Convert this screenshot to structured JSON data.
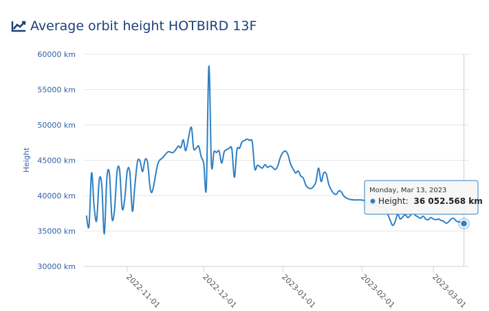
{
  "page": {
    "title": "Average orbit height HOTBIRD 13F",
    "title_icon": "line-chart-icon"
  },
  "colors": {
    "line": "#2e7fc4",
    "title": "#1d3f78",
    "axis_text": "#2c5fa3",
    "grid": "#e6e6e6"
  },
  "tooltip": {
    "date": "Monday, Mar 13, 2023",
    "series_label": "Height:",
    "value_text": "36 052.568 km",
    "x": "2023-03-13",
    "y": 36052.568
  },
  "chart_data": {
    "type": "line",
    "title": "Average orbit height HOTBIRD 13F",
    "ylabel": "Height",
    "xlabel": "",
    "ylim": [
      30000,
      60000
    ],
    "xlim": [
      "2022-10-15",
      "2023-03-15"
    ],
    "grid": true,
    "y_ticks": [
      30000,
      35000,
      40000,
      45000,
      50000,
      55000,
      60000
    ],
    "y_tick_labels": [
      "30000 km",
      "35000 km",
      "40000 km",
      "45000 km",
      "50000 km",
      "55000 km",
      "60000 km"
    ],
    "x_ticks": [
      "2022-11-01",
      "2022-12-01",
      "2023-01-01",
      "2023-02-01",
      "2023-03-01"
    ],
    "x_tick_labels": [
      "2022-11-01",
      "2022-12-01",
      "2023-01-01",
      "2023-02-01",
      "2023-03-01"
    ],
    "series": [
      {
        "name": "Height",
        "points": [
          [
            "2022-10-16",
            37200
          ],
          [
            "2022-10-17",
            35700
          ],
          [
            "2022-10-18",
            43200
          ],
          [
            "2022-10-19",
            38500
          ],
          [
            "2022-10-20",
            36500
          ],
          [
            "2022-10-21",
            42200
          ],
          [
            "2022-10-22",
            41500
          ],
          [
            "2022-10-23",
            34600
          ],
          [
            "2022-10-24",
            42500
          ],
          [
            "2022-10-25",
            43100
          ],
          [
            "2022-10-26",
            36800
          ],
          [
            "2022-10-27",
            38000
          ],
          [
            "2022-10-28",
            43400
          ],
          [
            "2022-10-29",
            43600
          ],
          [
            "2022-10-30",
            38200
          ],
          [
            "2022-10-31",
            39500
          ],
          [
            "2022-11-01",
            43500
          ],
          [
            "2022-11-02",
            43300
          ],
          [
            "2022-11-03",
            37800
          ],
          [
            "2022-11-04",
            41500
          ],
          [
            "2022-11-05",
            44800
          ],
          [
            "2022-11-06",
            44900
          ],
          [
            "2022-11-07",
            43400
          ],
          [
            "2022-11-08",
            45100
          ],
          [
            "2022-11-09",
            44600
          ],
          [
            "2022-11-10",
            41000
          ],
          [
            "2022-11-11",
            40800
          ],
          [
            "2022-11-13",
            44500
          ],
          [
            "2022-11-15",
            45400
          ],
          [
            "2022-11-17",
            46200
          ],
          [
            "2022-11-19",
            46100
          ],
          [
            "2022-11-21",
            47000
          ],
          [
            "2022-11-22",
            46800
          ],
          [
            "2022-11-23",
            47900
          ],
          [
            "2022-11-24",
            46400
          ],
          [
            "2022-11-26",
            49700
          ],
          [
            "2022-11-27",
            46700
          ],
          [
            "2022-11-28",
            46700
          ],
          [
            "2022-11-29",
            47000
          ],
          [
            "2022-11-30",
            45500
          ],
          [
            "2022-12-01",
            44500
          ],
          [
            "2022-12-02",
            41100
          ],
          [
            "2022-12-03",
            58300
          ],
          [
            "2022-12-04",
            44400
          ],
          [
            "2022-12-05",
            46200
          ],
          [
            "2022-12-06",
            46100
          ],
          [
            "2022-12-07",
            46300
          ],
          [
            "2022-12-08",
            44600
          ],
          [
            "2022-12-09",
            46200
          ],
          [
            "2022-12-10",
            46500
          ],
          [
            "2022-12-11",
            46700
          ],
          [
            "2022-12-12",
            46600
          ],
          [
            "2022-12-13",
            42600
          ],
          [
            "2022-12-14",
            46500
          ],
          [
            "2022-12-15",
            46700
          ],
          [
            "2022-12-16",
            47600
          ],
          [
            "2022-12-17",
            47800
          ],
          [
            "2022-12-18",
            48000
          ],
          [
            "2022-12-19",
            47800
          ],
          [
            "2022-12-20",
            47600
          ],
          [
            "2022-12-21",
            43800
          ],
          [
            "2022-12-22",
            44300
          ],
          [
            "2022-12-23",
            44100
          ],
          [
            "2022-12-24",
            43900
          ],
          [
            "2022-12-25",
            44400
          ],
          [
            "2022-12-26",
            44000
          ],
          [
            "2022-12-27",
            44200
          ],
          [
            "2022-12-28",
            44000
          ],
          [
            "2022-12-29",
            43700
          ],
          [
            "2022-12-30",
            44200
          ],
          [
            "2022-12-31",
            45400
          ],
          [
            "2023-01-01",
            46100
          ],
          [
            "2023-01-02",
            46300
          ],
          [
            "2023-01-03",
            45800
          ],
          [
            "2023-01-04",
            44500
          ],
          [
            "2023-01-05",
            43800
          ],
          [
            "2023-01-06",
            43200
          ],
          [
            "2023-01-07",
            43500
          ],
          [
            "2023-01-08",
            42800
          ],
          [
            "2023-01-09",
            42500
          ],
          [
            "2023-01-10",
            41500
          ],
          [
            "2023-01-11",
            41100
          ],
          [
            "2023-01-12",
            41000
          ],
          [
            "2023-01-13",
            41300
          ],
          [
            "2023-01-14",
            42000
          ],
          [
            "2023-01-15",
            43900
          ],
          [
            "2023-01-16",
            42000
          ],
          [
            "2023-01-17",
            43200
          ],
          [
            "2023-01-18",
            43100
          ],
          [
            "2023-01-19",
            41600
          ],
          [
            "2023-01-20",
            40800
          ],
          [
            "2023-01-21",
            40300
          ],
          [
            "2023-01-22",
            40200
          ],
          [
            "2023-01-23",
            40700
          ],
          [
            "2023-01-24",
            40500
          ],
          [
            "2023-01-25",
            39900
          ],
          [
            "2023-01-27",
            39500
          ],
          [
            "2023-01-29",
            39400
          ],
          [
            "2023-01-31",
            39400
          ],
          [
            "2023-02-02",
            39300
          ],
          [
            "2023-02-04",
            38800
          ],
          [
            "2023-02-06",
            38700
          ],
          [
            "2023-02-08",
            38500
          ],
          [
            "2023-02-10",
            38200
          ],
          [
            "2023-02-12",
            36600
          ],
          [
            "2023-02-13",
            35800
          ],
          [
            "2023-02-14",
            36300
          ],
          [
            "2023-02-15",
            37400
          ],
          [
            "2023-02-16",
            36700
          ],
          [
            "2023-02-17",
            37000
          ],
          [
            "2023-02-18",
            37300
          ],
          [
            "2023-02-19",
            36900
          ],
          [
            "2023-02-20",
            37200
          ],
          [
            "2023-02-21",
            37500
          ],
          [
            "2023-02-22",
            37200
          ],
          [
            "2023-02-23",
            37000
          ],
          [
            "2023-02-24",
            36800
          ],
          [
            "2023-02-25",
            37100
          ],
          [
            "2023-02-26",
            36700
          ],
          [
            "2023-02-27",
            36600
          ],
          [
            "2023-02-28",
            36900
          ],
          [
            "2023-03-01",
            36700
          ],
          [
            "2023-03-02",
            36600
          ],
          [
            "2023-03-03",
            36700
          ],
          [
            "2023-03-04",
            36500
          ],
          [
            "2023-03-05",
            36400
          ],
          [
            "2023-03-06",
            36100
          ],
          [
            "2023-03-07",
            36300
          ],
          [
            "2023-03-08",
            36700
          ],
          [
            "2023-03-09",
            36800
          ],
          [
            "2023-03-10",
            36400
          ],
          [
            "2023-03-11",
            36300
          ],
          [
            "2023-03-12",
            36200
          ],
          [
            "2023-03-13",
            36052.568
          ]
        ]
      }
    ]
  }
}
